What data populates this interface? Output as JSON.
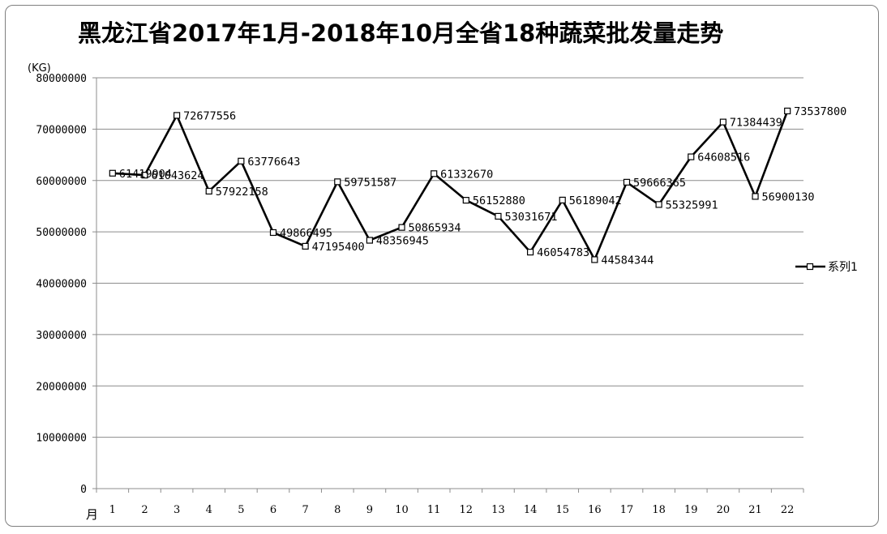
{
  "chart_data": {
    "type": "line",
    "title": "黑龙江省2017年1月-2018年10月全省18种蔬菜批发量走势",
    "ylabel": "(KG)",
    "xlabel": "月",
    "ylim": [
      0,
      80000000
    ],
    "yticks": [
      "0",
      "10000000",
      "20000000",
      "30000000",
      "40000000",
      "50000000",
      "60000000",
      "70000000",
      "80000000"
    ],
    "grid": true,
    "legend_position": "right",
    "categories": [
      "1",
      "2",
      "3",
      "4",
      "5",
      "6",
      "7",
      "8",
      "9",
      "10",
      "11",
      "12",
      "13",
      "14",
      "15",
      "16",
      "17",
      "18",
      "19",
      "20",
      "21",
      "22"
    ],
    "series": [
      {
        "name": "系列1",
        "color": "#000000",
        "marker": "square",
        "values": [
          61419904,
          61043624,
          72677556,
          57922158,
          63776643,
          49866495,
          47195400,
          59751587,
          48356945,
          50865934,
          61332670,
          56152880,
          53031671,
          46054783,
          56189042,
          44584344,
          59666365,
          55325991,
          64608516,
          71384439,
          56900130,
          73537800
        ],
        "labels": [
          "61419904",
          "61043624",
          "72677556",
          "57922158",
          "63776643",
          "49866495",
          "47195400",
          "59751587",
          "48356945",
          "50865934",
          "61332670",
          "56152880",
          "53031671",
          "46054783",
          "56189042",
          "44584344",
          "59666365",
          "55325991",
          "64608516",
          "71384439",
          "56900130",
          "73537800"
        ]
      }
    ]
  }
}
